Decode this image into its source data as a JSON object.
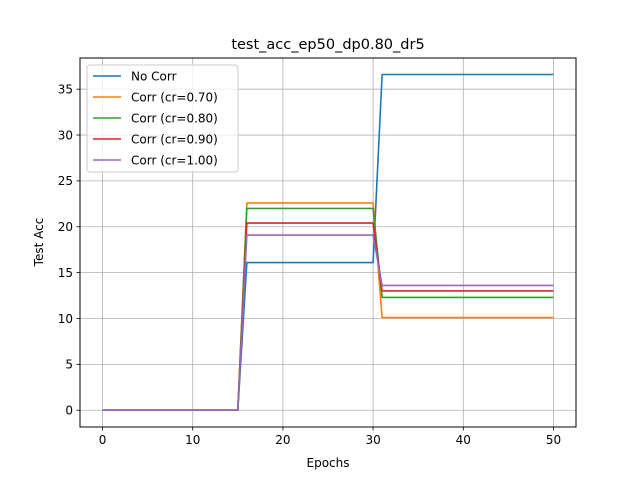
{
  "chart_data": {
    "type": "line",
    "title": "test_acc_ep50_dp0.80_dr5",
    "xlabel": "Epochs",
    "ylabel": "Test Acc",
    "xlim": [
      -2.5,
      52.5
    ],
    "ylim": [
      -1.83,
      38.4
    ],
    "xticks": [
      0,
      10,
      20,
      30,
      40,
      50
    ],
    "yticks": [
      0,
      5,
      10,
      15,
      20,
      25,
      30,
      35
    ],
    "grid": true,
    "legend_position": "top-left",
    "x": [
      0,
      1,
      2,
      3,
      4,
      5,
      6,
      7,
      8,
      9,
      10,
      11,
      12,
      13,
      14,
      15,
      16,
      17,
      18,
      19,
      20,
      21,
      22,
      23,
      24,
      25,
      26,
      27,
      28,
      29,
      30,
      31,
      32,
      33,
      34,
      35,
      36,
      37,
      38,
      39,
      40,
      41,
      42,
      43,
      44,
      45,
      46,
      47,
      48,
      49,
      50
    ],
    "series": [
      {
        "name": "No Corr",
        "color": "#1f77b4",
        "segments": [
          [
            0,
            15,
            0
          ],
          [
            16,
            30,
            16.1
          ],
          [
            31,
            50,
            36.6
          ]
        ]
      },
      {
        "name": "Corr (cr=0.70)",
        "color": "#ff7f0e",
        "segments": [
          [
            0,
            15,
            0
          ],
          [
            16,
            30,
            22.6
          ],
          [
            31,
            50,
            10.1
          ]
        ]
      },
      {
        "name": "Corr (cr=0.80)",
        "color": "#2ca02c",
        "segments": [
          [
            0,
            15,
            0
          ],
          [
            16,
            30,
            22.0
          ],
          [
            31,
            50,
            12.3
          ]
        ]
      },
      {
        "name": "Corr (cr=0.90)",
        "color": "#d62728",
        "segments": [
          [
            0,
            15,
            0
          ],
          [
            16,
            30,
            20.4
          ],
          [
            31,
            50,
            13.0
          ]
        ]
      },
      {
        "name": "Corr (cr=1.00)",
        "color": "#9467bd",
        "segments": [
          [
            0,
            15,
            0
          ],
          [
            16,
            30,
            19.1
          ],
          [
            31,
            50,
            13.6
          ]
        ]
      }
    ]
  }
}
